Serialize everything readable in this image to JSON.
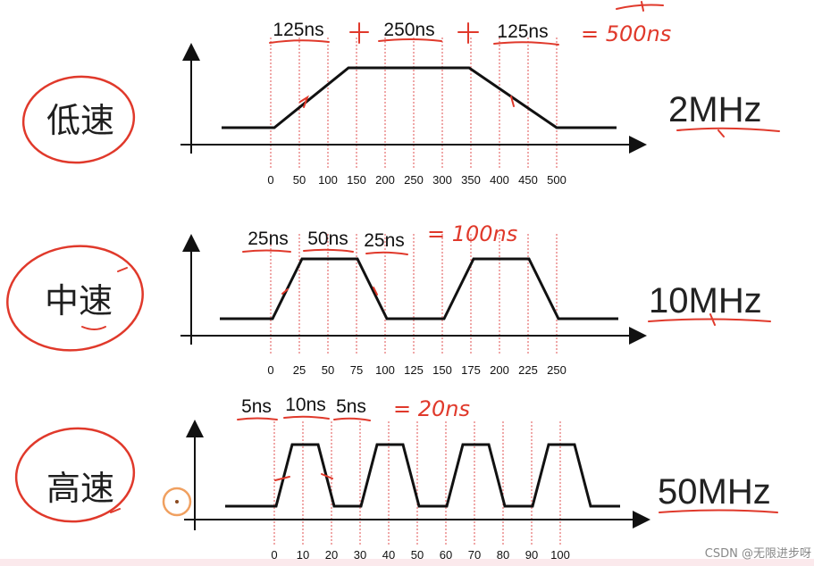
{
  "colors": {
    "ink": "#111111",
    "annotation": "#e0392b",
    "guide": "#e05050",
    "watermark": "#888888"
  },
  "panels": [
    {
      "speed_label": "低速",
      "frequency_label": "2MHz",
      "ticks": [
        "0",
        "50",
        "100",
        "150",
        "200",
        "250",
        "300",
        "350",
        "400",
        "450",
        "500"
      ],
      "durations": [
        "125ns",
        "250ns",
        "125ns"
      ],
      "total_note": "= 500ns"
    },
    {
      "speed_label": "中速",
      "frequency_label": "10MHz",
      "ticks": [
        "0",
        "25",
        "50",
        "75",
        "100",
        "125",
        "150",
        "175",
        "200",
        "225",
        "250"
      ],
      "durations": [
        "25ns",
        "50ns",
        "25ns"
      ],
      "total_note": "= 100ns"
    },
    {
      "speed_label": "高速",
      "frequency_label": "50MHz",
      "ticks": [
        "0",
        "10",
        "20",
        "30",
        "40",
        "50",
        "60",
        "70",
        "80",
        "90",
        "100"
      ],
      "durations": [
        "5ns",
        "10ns",
        "5ns"
      ],
      "total_note": "= 20ns"
    }
  ],
  "watermark": "CSDN @无限进步呀"
}
